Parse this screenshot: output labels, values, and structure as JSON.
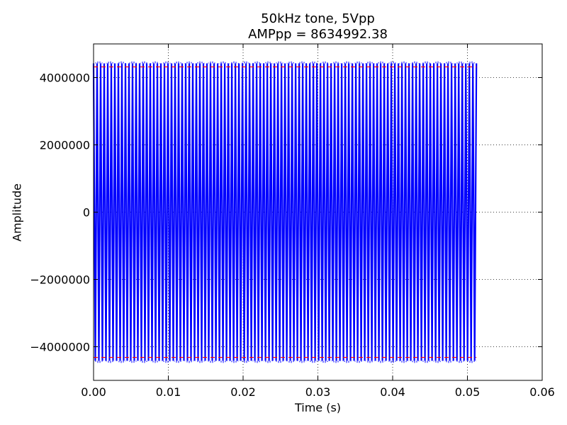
{
  "chart_data": {
    "type": "line",
    "title": "50kHz tone, 5Vpp",
    "subtitle": "AMPpp = 8634992.38",
    "xlabel": "Time (s)",
    "ylabel": "Amplitude",
    "xlim": [
      0,
      0.06
    ],
    "ylim": [
      -5000000,
      5000000
    ],
    "xticks": [
      0.0,
      0.01,
      0.02,
      0.03,
      0.04,
      0.05,
      0.06
    ],
    "xtick_labels": [
      "0.00",
      "0.01",
      "0.02",
      "0.03",
      "0.04",
      "0.05",
      "0.06"
    ],
    "yticks": [
      -4000000,
      -2000000,
      0,
      2000000,
      4000000
    ],
    "ytick_labels": [
      "−4000000",
      "−2000000",
      "0",
      "2000000",
      "4000000"
    ],
    "grid": true,
    "series": [
      {
        "type": "line",
        "color": "#0000ff",
        "x_start": 0.0,
        "x_end": 0.0512,
        "tone_hz": 50000,
        "amplitude": 4420000
      },
      {
        "type": "hline",
        "style": "dashed",
        "color": "#ff0000",
        "y": 4317496.19
      },
      {
        "type": "hline",
        "style": "dashed",
        "color": "#ff0000",
        "y": -4317496.19
      }
    ]
  }
}
